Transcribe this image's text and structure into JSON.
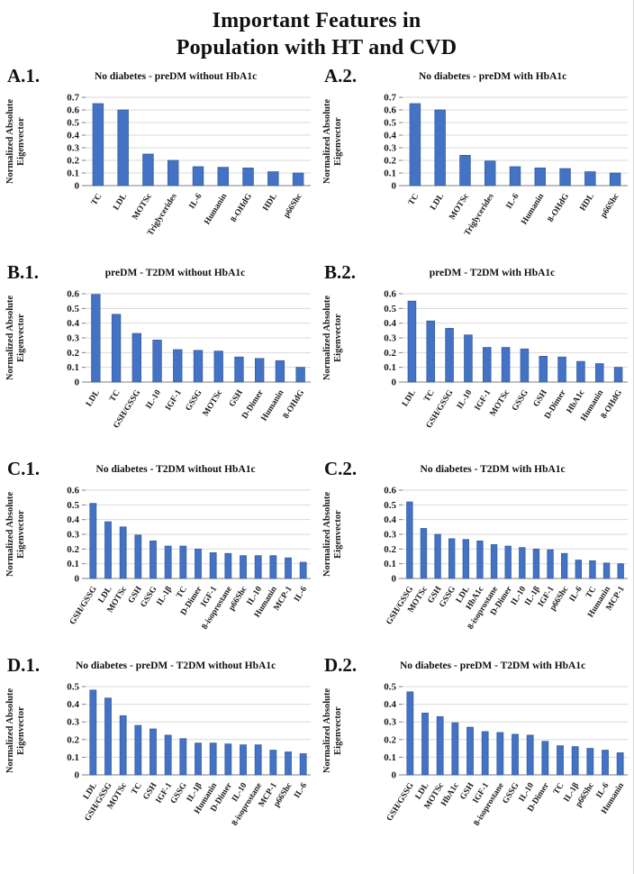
{
  "figure_title": {
    "line1": "Important Features in",
    "line2": "Population with HT and CVD"
  },
  "ylabel_lines": [
    "Normalized Absolute",
    "Eigenvector"
  ],
  "colors": {
    "bar_fill": "#4472C4",
    "bar_stroke": "#35609F",
    "gridline": "#D9D9D9",
    "axis": "#7F7F7F",
    "text": "#1A1A1A"
  },
  "chart_data": [
    {
      "type": "bar",
      "label": "A.1.",
      "title": "No diabetes - preDM without HbA1c",
      "ylabel": "Normalized Absolute Eigenvector",
      "ylim": [
        0,
        0.7
      ],
      "ytick_step": 0.1,
      "grid": true,
      "categories": [
        "TC",
        "LDL",
        "MOTSc",
        "Triglycerides",
        "IL-6",
        "Humanin",
        "8-OHdG",
        "HDL",
        "p66Shc"
      ],
      "values": [
        0.65,
        0.6,
        0.25,
        0.2,
        0.15,
        0.145,
        0.14,
        0.11,
        0.1
      ]
    },
    {
      "type": "bar",
      "label": "A.2.",
      "title": "No diabetes - preDM with HbA1c",
      "ylabel": "Normalized Absolute Eigenvector",
      "ylim": [
        0,
        0.7
      ],
      "ytick_step": 0.1,
      "grid": true,
      "categories": [
        "TC",
        "LDL",
        "MOTSc",
        "Triglycerides",
        "IL-6",
        "Humanin",
        "8-OHdG",
        "HDL",
        "p66Shc"
      ],
      "values": [
        0.65,
        0.6,
        0.24,
        0.195,
        0.15,
        0.14,
        0.135,
        0.11,
        0.1
      ]
    },
    {
      "type": "bar",
      "label": "B.1.",
      "title": "preDM - T2DM without HbA1c",
      "ylabel": "Normalized Absolute Eigenvector",
      "ylim": [
        0,
        0.6
      ],
      "ytick_step": 0.1,
      "grid": true,
      "categories": [
        "LDL",
        "TC",
        "GSH/GSSG",
        "IL-10",
        "IGF-1",
        "GSSG",
        "MOTSc",
        "GSH",
        "D-Dimer",
        "Humanin",
        "8-OHdG"
      ],
      "values": [
        0.595,
        0.46,
        0.33,
        0.285,
        0.22,
        0.215,
        0.21,
        0.17,
        0.16,
        0.145,
        0.1
      ]
    },
    {
      "type": "bar",
      "label": "B.2.",
      "title": "preDM - T2DM with HbA1c",
      "ylabel": "Normalized Absolute Eigenvector",
      "ylim": [
        0,
        0.6
      ],
      "ytick_step": 0.1,
      "grid": true,
      "categories": [
        "LDL",
        "TC",
        "GSH/GSSG",
        "IL-10",
        "IGF-1",
        "MOTSc",
        "GSSG",
        "GSH",
        "D-Dimer",
        "HbA1c",
        "Humanin",
        "8-OHdG"
      ],
      "values": [
        0.55,
        0.415,
        0.365,
        0.32,
        0.235,
        0.235,
        0.225,
        0.175,
        0.17,
        0.14,
        0.125,
        0.1
      ]
    },
    {
      "type": "bar",
      "label": "C.1.",
      "title": "No diabetes - T2DM without HbA1c",
      "ylabel": "Normalized Absolute Eigenvector",
      "ylim": [
        0,
        0.6
      ],
      "ytick_step": 0.1,
      "grid": true,
      "categories": [
        "GSH/GSSG",
        "LDL",
        "MOTSc",
        "GSH",
        "GSSG",
        "IL-1β",
        "TC",
        "D-Dimer",
        "IGF-1",
        "8-isoprostane",
        "p66Shc",
        "IL-10",
        "Humanin",
        "MCP-1",
        "IL-6"
      ],
      "values": [
        0.51,
        0.385,
        0.35,
        0.295,
        0.255,
        0.22,
        0.22,
        0.2,
        0.175,
        0.17,
        0.155,
        0.155,
        0.155,
        0.14,
        0.11
      ]
    },
    {
      "type": "bar",
      "label": "C.2.",
      "title": "No diabetes - T2DM with HbA1c",
      "ylabel": "Normalized Absolute Eigenvector",
      "ylim": [
        0,
        0.6
      ],
      "ytick_step": 0.1,
      "grid": true,
      "categories": [
        "GSH/GSSG",
        "MOTSc",
        "GSH",
        "GSSG",
        "LDL",
        "HbA1c",
        "8-isoprostane",
        "D-Dimer",
        "IL-10",
        "IL-1β",
        "IGF-1",
        "p66Shc",
        "IL-6",
        "TC",
        "Humanin",
        "MCP-1"
      ],
      "values": [
        0.52,
        0.34,
        0.3,
        0.27,
        0.265,
        0.255,
        0.23,
        0.22,
        0.21,
        0.2,
        0.195,
        0.17,
        0.125,
        0.12,
        0.105,
        0.1
      ]
    },
    {
      "type": "bar",
      "label": "D.1.",
      "title": "No diabetes - preDM - T2DM without HbA1c",
      "ylabel": "Normalized Absolute Eigenvector",
      "ylim": [
        0,
        0.5
      ],
      "ytick_step": 0.1,
      "grid": true,
      "categories": [
        "LDL",
        "GSH/GSSG",
        "MOTSc",
        "TC",
        "GSH",
        "IGF-1",
        "GSSG",
        "IL-1β",
        "Humanin",
        "D-Dimer",
        "IL-10",
        "8-isoprostane",
        "MCP-1",
        "p66Shc",
        "IL-6"
      ],
      "values": [
        0.48,
        0.435,
        0.335,
        0.28,
        0.26,
        0.225,
        0.205,
        0.18,
        0.18,
        0.175,
        0.17,
        0.17,
        0.14,
        0.13,
        0.12
      ]
    },
    {
      "type": "bar",
      "label": "D.2.",
      "title": "No diabetes - preDM - T2DM with HbA1c",
      "ylabel": "Normalized Absolute Eigenvector",
      "ylim": [
        0,
        0.5
      ],
      "ytick_step": 0.1,
      "grid": true,
      "categories": [
        "GSH/GSSG",
        "LDL",
        "MOTSc",
        "HbA1c",
        "GSH",
        "IGF-1",
        "8-isoprostane",
        "GSSG",
        "IL-10",
        "D-Dimer",
        "TC",
        "IL-1β",
        "p66Shc",
        "IL-6",
        "Humanin"
      ],
      "values": [
        0.47,
        0.35,
        0.33,
        0.295,
        0.27,
        0.245,
        0.24,
        0.23,
        0.225,
        0.19,
        0.165,
        0.16,
        0.15,
        0.14,
        0.125
      ]
    }
  ]
}
